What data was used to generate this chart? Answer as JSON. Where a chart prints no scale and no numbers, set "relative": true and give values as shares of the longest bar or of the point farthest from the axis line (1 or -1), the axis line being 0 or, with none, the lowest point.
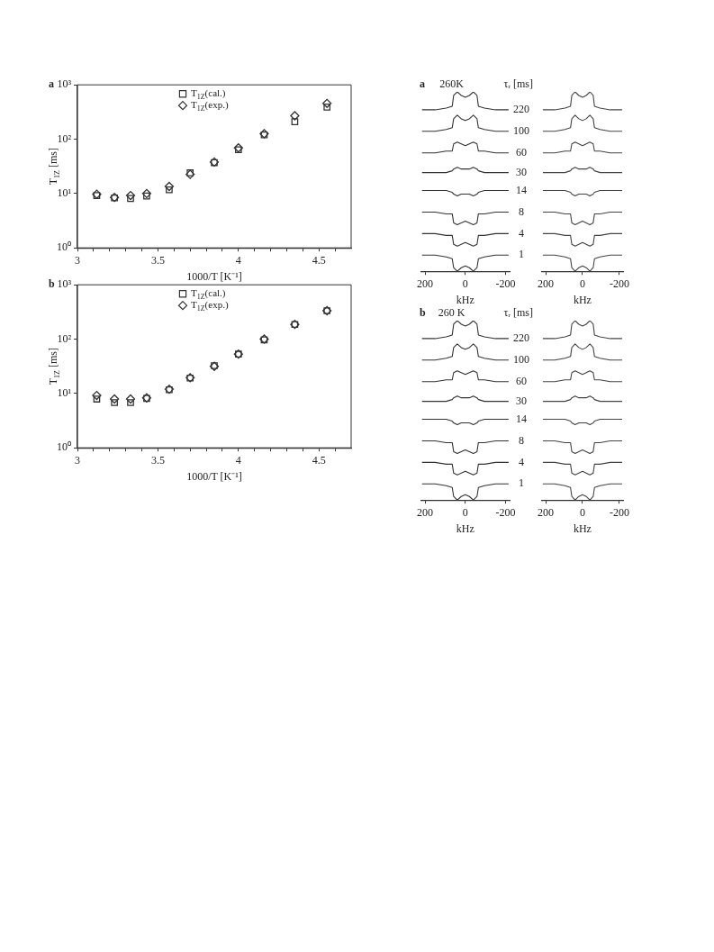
{
  "chart_data": [
    {
      "type": "scatter",
      "title": "a",
      "xlabel": "1000/T [K⁻¹]",
      "ylabel": "T$_{1Z}$ [ms]",
      "x": [
        3.12,
        3.23,
        3.33,
        3.43,
        3.57,
        3.7,
        3.85,
        4.0,
        4.16,
        4.35,
        4.55
      ],
      "series": [
        {
          "name": "T$_{1Z}$(cal.)",
          "color": "#333333",
          "marker": "square",
          "values": [
            9.2,
            8.3,
            8.1,
            9.0,
            11.7,
            24,
            37,
            64,
            120,
            210,
            390
          ]
        },
        {
          "name": "T$_{1Z}$(exp.)",
          "color": "#333333",
          "marker": "diamond",
          "values": [
            9.7,
            8.5,
            9.2,
            10,
            13.5,
            22.5,
            38,
            69,
            126,
            270,
            455
          ]
        }
      ],
      "xlim": [
        3,
        4.7
      ],
      "xticks": [
        3,
        {
          "value": 3.1,
          "label": null
        },
        {
          "value": 3.2,
          "label": null
        },
        {
          "value": 3.3,
          "label": null
        },
        {
          "value": 3.4,
          "label": null
        },
        3.5,
        {
          "value": 3.6,
          "label": null
        },
        {
          "value": 3.7,
          "label": null
        },
        {
          "value": 3.8,
          "label": null
        },
        {
          "value": 3.9,
          "label": null
        },
        4,
        {
          "value": 4.1,
          "label": null
        },
        {
          "value": 4.2,
          "label": null
        },
        {
          "value": 4.3,
          "label": null
        },
        {
          "value": 4.4,
          "label": null
        },
        4.5,
        {
          "value": 4.6,
          "label": null
        }
      ],
      "ylim": [
        1,
        1000
      ],
      "yticks": [
        {
          "value": 1,
          "label": "10⁰"
        },
        {
          "value": 10,
          "label": "10¹"
        },
        {
          "value": 100,
          "label": "10²"
        },
        {
          "value": 1000,
          "label": "10³"
        }
      ],
      "log": true,
      "grid": false,
      "legend": "top"
    },
    {
      "type": "line",
      "title": "a",
      "xlabel": "kHz",
      "annotations": [
        "260K",
        "τᵣ [ms]"
      ],
      "relative": true,
      "x": [
        215,
        150,
        95,
        65,
        58,
        40,
        20,
        0,
        -20,
        -40,
        -58,
        -65,
        -95,
        -150,
        -215
      ],
      "series": [
        {
          "name": "220",
          "color": "#333333",
          "values": [
            0.9,
            0.9,
            0.91,
            0.92,
            0.98,
            1.0,
            0.98,
            0.97,
            0.98,
            1.0,
            0.98,
            0.92,
            0.91,
            0.9,
            0.9
          ]
        },
        {
          "name": "100",
          "color": "#333333",
          "values": [
            0.78,
            0.78,
            0.79,
            0.8,
            0.85,
            0.87,
            0.85,
            0.84,
            0.85,
            0.87,
            0.85,
            0.8,
            0.79,
            0.78,
            0.78
          ]
        },
        {
          "name": "60",
          "color": "#333333",
          "values": [
            0.66,
            0.66,
            0.67,
            0.67,
            0.71,
            0.72,
            0.71,
            0.7,
            0.71,
            0.72,
            0.71,
            0.67,
            0.67,
            0.66,
            0.66
          ]
        },
        {
          "name": "30",
          "color": "#333333",
          "values": [
            0.55,
            0.55,
            0.55,
            0.56,
            0.57,
            0.58,
            0.57,
            0.57,
            0.57,
            0.58,
            0.57,
            0.56,
            0.55,
            0.55,
            0.55
          ]
        },
        {
          "name": "14",
          "color": "#333333",
          "values": [
            0.45,
            0.45,
            0.45,
            0.44,
            0.43,
            0.42,
            0.43,
            0.43,
            0.43,
            0.42,
            0.43,
            0.44,
            0.45,
            0.45,
            0.45
          ]
        },
        {
          "name": "8",
          "color": "#333333",
          "values": [
            0.33,
            0.33,
            0.32,
            0.32,
            0.27,
            0.26,
            0.27,
            0.28,
            0.27,
            0.26,
            0.27,
            0.32,
            0.32,
            0.33,
            0.33
          ]
        },
        {
          "name": "4",
          "color": "#333333",
          "values": [
            0.21,
            0.21,
            0.2,
            0.2,
            0.15,
            0.14,
            0.15,
            0.16,
            0.15,
            0.14,
            0.15,
            0.2,
            0.2,
            0.21,
            0.21
          ]
        },
        {
          "name": "1",
          "color": "#333333",
          "values": [
            0.09,
            0.09,
            0.08,
            0.07,
            0.02,
            0.0,
            0.02,
            0.03,
            0.02,
            0.0,
            0.02,
            0.07,
            0.08,
            0.09,
            0.09
          ]
        }
      ],
      "xlim": [
        220,
        -220
      ],
      "xticks": [
        200,
        0,
        -200
      ],
      "tick_labels": "x",
      "grid": false
    },
    {
      "type": "line",
      "xlabel": "kHz",
      "relative": true,
      "x": [
        215,
        150,
        95,
        65,
        58,
        40,
        20,
        0,
        -20,
        -40,
        -58,
        -65,
        -95,
        -150,
        -215
      ],
      "series": [
        {
          "color": "#444444",
          "values": [
            0.9,
            0.9,
            0.91,
            0.92,
            0.98,
            1.0,
            0.98,
            0.97,
            0.98,
            1.0,
            0.98,
            0.92,
            0.91,
            0.9,
            0.9
          ]
        },
        {
          "color": "#444444",
          "values": [
            0.78,
            0.78,
            0.79,
            0.8,
            0.85,
            0.87,
            0.85,
            0.84,
            0.85,
            0.87,
            0.85,
            0.8,
            0.79,
            0.78,
            0.78
          ]
        },
        {
          "color": "#444444",
          "values": [
            0.66,
            0.66,
            0.67,
            0.67,
            0.71,
            0.72,
            0.71,
            0.7,
            0.71,
            0.72,
            0.71,
            0.67,
            0.67,
            0.66,
            0.66
          ]
        },
        {
          "color": "#444444",
          "values": [
            0.55,
            0.55,
            0.55,
            0.56,
            0.57,
            0.58,
            0.57,
            0.57,
            0.57,
            0.58,
            0.57,
            0.56,
            0.55,
            0.55,
            0.55
          ]
        },
        {
          "color": "#444444",
          "values": [
            0.45,
            0.45,
            0.45,
            0.44,
            0.43,
            0.42,
            0.43,
            0.43,
            0.43,
            0.42,
            0.43,
            0.44,
            0.45,
            0.45,
            0.45
          ]
        },
        {
          "color": "#444444",
          "values": [
            0.33,
            0.33,
            0.32,
            0.32,
            0.27,
            0.26,
            0.27,
            0.28,
            0.27,
            0.26,
            0.27,
            0.32,
            0.32,
            0.33,
            0.33
          ]
        },
        {
          "color": "#444444",
          "values": [
            0.21,
            0.21,
            0.2,
            0.2,
            0.15,
            0.14,
            0.15,
            0.16,
            0.15,
            0.14,
            0.15,
            0.2,
            0.2,
            0.21,
            0.21
          ]
        },
        {
          "color": "#444444",
          "values": [
            0.09,
            0.09,
            0.08,
            0.07,
            0.02,
            0.0,
            0.02,
            0.03,
            0.02,
            0.0,
            0.02,
            0.07,
            0.08,
            0.09,
            0.09
          ]
        }
      ],
      "xlim": [
        220,
        -220
      ],
      "xticks": [
        200,
        0,
        -200
      ],
      "tick_labels": "x",
      "grid": false
    },
    {
      "type": "scatter",
      "title": "b",
      "xlabel": "1000/T [K⁻¹]",
      "ylabel": "T$_{1Z}$ [ms]",
      "x": [
        3.12,
        3.23,
        3.33,
        3.43,
        3.57,
        3.7,
        3.85,
        4.0,
        4.16,
        4.35,
        4.55
      ],
      "series": [
        {
          "name": "T$_{1Z}$(cal.)",
          "color": "#333333",
          "marker": "square",
          "values": [
            7.9,
            6.8,
            6.8,
            8.1,
            11.7,
            19.2,
            32.5,
            53,
            97,
            186,
            333
          ]
        },
        {
          "name": "T$_{1Z}$(exp.)",
          "color": "#333333",
          "marker": "diamond",
          "values": [
            9.2,
            7.9,
            7.9,
            8.3,
            12,
            19.5,
            31.6,
            53,
            100,
            187,
            333
          ]
        }
      ],
      "xlim": [
        3,
        4.7
      ],
      "xticks": [
        3,
        {
          "value": 3.1,
          "label": null
        },
        {
          "value": 3.2,
          "label": null
        },
        {
          "value": 3.3,
          "label": null
        },
        {
          "value": 3.4,
          "label": null
        },
        3.5,
        {
          "value": 3.6,
          "label": null
        },
        {
          "value": 3.7,
          "label": null
        },
        {
          "value": 3.8,
          "label": null
        },
        {
          "value": 3.9,
          "label": null
        },
        4,
        {
          "value": 4.1,
          "label": null
        },
        {
          "value": 4.2,
          "label": null
        },
        {
          "value": 4.3,
          "label": null
        },
        {
          "value": 4.4,
          "label": null
        },
        4.5,
        {
          "value": 4.6,
          "label": null
        }
      ],
      "ylim": [
        1,
        1000
      ],
      "yticks": [
        {
          "value": 1,
          "label": "10⁰"
        },
        {
          "value": 10,
          "label": "10¹"
        },
        {
          "value": 100,
          "label": "10²"
        },
        {
          "value": 1000,
          "label": "10³"
        }
      ],
      "log": true,
      "grid": false,
      "legend": "top"
    },
    {
      "type": "line",
      "title": "b",
      "xlabel": "kHz",
      "annotations": [
        "260 K",
        "τᵣ [ms]"
      ],
      "relative": true,
      "x": [
        215,
        150,
        95,
        65,
        58,
        40,
        20,
        0,
        -20,
        -40,
        -58,
        -65,
        -95,
        -150,
        -215
      ],
      "series": [
        {
          "name": "220",
          "color": "#333333",
          "values": [
            0.9,
            0.9,
            0.91,
            0.92,
            0.98,
            1.0,
            0.98,
            0.97,
            0.98,
            1.0,
            0.98,
            0.92,
            0.91,
            0.9,
            0.9
          ]
        },
        {
          "name": "100",
          "color": "#333333",
          "values": [
            0.78,
            0.78,
            0.79,
            0.8,
            0.85,
            0.87,
            0.85,
            0.84,
            0.85,
            0.87,
            0.85,
            0.8,
            0.79,
            0.78,
            0.78
          ]
        },
        {
          "name": "60",
          "color": "#333333",
          "values": [
            0.66,
            0.66,
            0.67,
            0.67,
            0.71,
            0.72,
            0.71,
            0.7,
            0.71,
            0.72,
            0.71,
            0.67,
            0.67,
            0.66,
            0.66
          ]
        },
        {
          "name": "30",
          "color": "#333333",
          "values": [
            0.55,
            0.55,
            0.55,
            0.56,
            0.57,
            0.58,
            0.57,
            0.57,
            0.57,
            0.58,
            0.57,
            0.56,
            0.55,
            0.55,
            0.55
          ]
        },
        {
          "name": "14",
          "color": "#333333",
          "values": [
            0.45,
            0.45,
            0.45,
            0.44,
            0.43,
            0.42,
            0.43,
            0.43,
            0.43,
            0.42,
            0.43,
            0.44,
            0.45,
            0.45,
            0.45
          ]
        },
        {
          "name": "8",
          "color": "#333333",
          "values": [
            0.33,
            0.33,
            0.32,
            0.32,
            0.27,
            0.26,
            0.27,
            0.28,
            0.27,
            0.26,
            0.27,
            0.32,
            0.32,
            0.33,
            0.33
          ]
        },
        {
          "name": "4",
          "color": "#333333",
          "values": [
            0.21,
            0.21,
            0.2,
            0.2,
            0.15,
            0.14,
            0.15,
            0.16,
            0.15,
            0.14,
            0.15,
            0.2,
            0.2,
            0.21,
            0.21
          ]
        },
        {
          "name": "1",
          "color": "#333333",
          "values": [
            0.09,
            0.09,
            0.08,
            0.07,
            0.02,
            0.0,
            0.02,
            0.03,
            0.02,
            0.0,
            0.02,
            0.07,
            0.08,
            0.09,
            0.09
          ]
        }
      ],
      "xlim": [
        220,
        -220
      ],
      "xticks": [
        200,
        0,
        -200
      ],
      "tick_labels": "x",
      "grid": false
    },
    {
      "type": "line",
      "xlabel": "kHz",
      "relative": true,
      "x": [
        215,
        150,
        95,
        65,
        58,
        40,
        20,
        0,
        -20,
        -40,
        -58,
        -65,
        -95,
        -150,
        -215
      ],
      "series": [
        {
          "color": "#444444",
          "values": [
            0.9,
            0.9,
            0.91,
            0.92,
            0.98,
            1.0,
            0.98,
            0.97,
            0.98,
            1.0,
            0.98,
            0.92,
            0.91,
            0.9,
            0.9
          ]
        },
        {
          "color": "#444444",
          "values": [
            0.78,
            0.78,
            0.79,
            0.8,
            0.85,
            0.87,
            0.85,
            0.84,
            0.85,
            0.87,
            0.85,
            0.8,
            0.79,
            0.78,
            0.78
          ]
        },
        {
          "color": "#444444",
          "values": [
            0.66,
            0.66,
            0.67,
            0.67,
            0.71,
            0.72,
            0.71,
            0.7,
            0.71,
            0.72,
            0.71,
            0.67,
            0.67,
            0.66,
            0.66
          ]
        },
        {
          "color": "#444444",
          "values": [
            0.55,
            0.55,
            0.55,
            0.56,
            0.57,
            0.58,
            0.57,
            0.57,
            0.57,
            0.58,
            0.57,
            0.56,
            0.55,
            0.55,
            0.55
          ]
        },
        {
          "color": "#444444",
          "values": [
            0.45,
            0.45,
            0.45,
            0.44,
            0.43,
            0.42,
            0.43,
            0.43,
            0.43,
            0.42,
            0.43,
            0.44,
            0.45,
            0.45,
            0.45
          ]
        },
        {
          "color": "#444444",
          "values": [
            0.33,
            0.33,
            0.32,
            0.32,
            0.27,
            0.26,
            0.27,
            0.28,
            0.27,
            0.26,
            0.27,
            0.32,
            0.32,
            0.33,
            0.33
          ]
        },
        {
          "color": "#444444",
          "values": [
            0.21,
            0.21,
            0.2,
            0.2,
            0.15,
            0.14,
            0.15,
            0.16,
            0.15,
            0.14,
            0.15,
            0.2,
            0.2,
            0.21,
            0.21
          ]
        },
        {
          "color": "#444444",
          "values": [
            0.09,
            0.09,
            0.08,
            0.07,
            0.02,
            0.0,
            0.02,
            0.03,
            0.02,
            0.0,
            0.02,
            0.07,
            0.08,
            0.09,
            0.09
          ]
        }
      ],
      "xlim": [
        220,
        -220
      ],
      "xticks": [
        200,
        0,
        -200
      ],
      "tick_labels": "x",
      "grid": false
    }
  ]
}
